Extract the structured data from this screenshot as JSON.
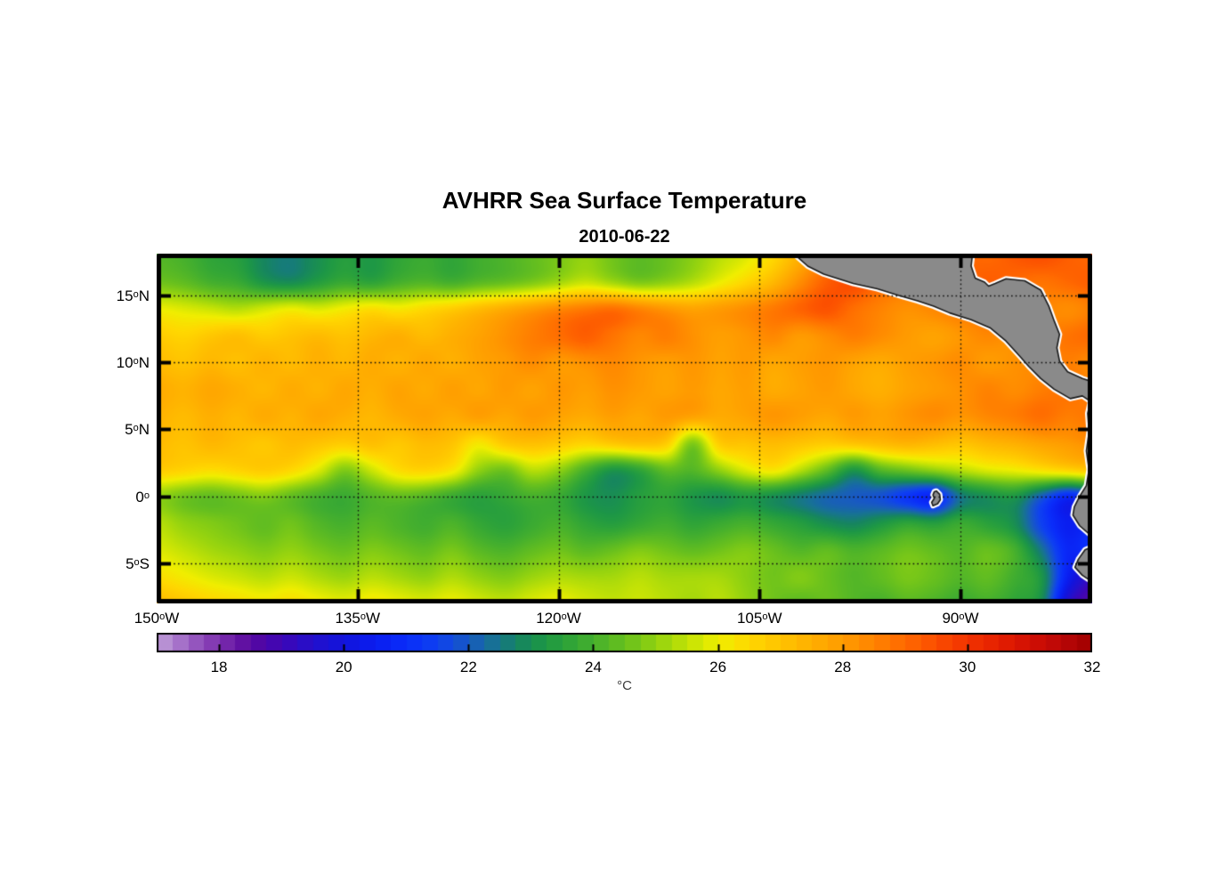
{
  "figure": {
    "title": "AVHRR Sea Surface Temperature",
    "subtitle": "2010-06-22"
  },
  "chart_data": {
    "type": "heatmap",
    "title": "AVHRR Sea Surface Temperature",
    "subtitle": "2010-06-22",
    "x_axis": {
      "tick_values_degW": [
        150,
        135,
        120,
        105,
        90
      ],
      "tick_labels": [
        "150°W",
        "135°W",
        "120°W",
        "105°W",
        "90°W"
      ],
      "gridline_values_degW": [
        135,
        120,
        105,
        90
      ]
    },
    "y_axis": {
      "tick_values_degN": [
        15,
        10,
        5,
        0,
        -5
      ],
      "tick_labels": [
        "15°N",
        "10°N",
        "5°N",
        "0°",
        "5°S"
      ],
      "gridline_values_degN": [
        15,
        10,
        5,
        0,
        -5
      ]
    },
    "extent": {
      "lon_west_degW": 150,
      "lon_east_degW": 80.2,
      "lat_north_degN": 18.1,
      "lat_south_degN": -8.0
    },
    "grid_on": true,
    "colorbar": {
      "min": 17,
      "max": 32,
      "step_band": 0.25,
      "tick_values": [
        18,
        20,
        22,
        24,
        26,
        28,
        30,
        32
      ],
      "tick_labels": [
        "18",
        "20",
        "22",
        "24",
        "26",
        "28",
        "30",
        "32"
      ],
      "unit_label": "°C",
      "stops": [
        [
          17.0,
          "#c0a0d8"
        ],
        [
          17.5,
          "#9c62c4"
        ],
        [
          18.0,
          "#7c2fae"
        ],
        [
          18.5,
          "#58089e"
        ],
        [
          19.0,
          "#3e06b6"
        ],
        [
          19.5,
          "#2410cc"
        ],
        [
          20.0,
          "#1214dd"
        ],
        [
          20.5,
          "#0a1ef0"
        ],
        [
          21.0,
          "#0a2dfa"
        ],
        [
          21.5,
          "#0f41f0"
        ],
        [
          22.0,
          "#185ac2"
        ],
        [
          22.4,
          "#177294"
        ],
        [
          22.8,
          "#168560"
        ],
        [
          23.2,
          "#1d9746"
        ],
        [
          23.6,
          "#2fa438"
        ],
        [
          24.0,
          "#46b02d"
        ],
        [
          24.5,
          "#68c01e"
        ],
        [
          25.0,
          "#92d210"
        ],
        [
          25.5,
          "#c2e206"
        ],
        [
          26.0,
          "#f0ee00"
        ],
        [
          26.5,
          "#ffd800"
        ],
        [
          27.0,
          "#ffc300"
        ],
        [
          27.5,
          "#ffaf00"
        ],
        [
          28.0,
          "#ff9b00"
        ],
        [
          28.5,
          "#ff8300"
        ],
        [
          29.0,
          "#ff6900"
        ],
        [
          29.5,
          "#fb4d00"
        ],
        [
          30.0,
          "#f23300"
        ],
        [
          30.5,
          "#e51f00"
        ],
        [
          31.0,
          "#d21004"
        ],
        [
          31.5,
          "#ba0707"
        ],
        [
          32.0,
          "#a00000"
        ]
      ]
    },
    "sst_grid": {
      "lons_degW_start": 150,
      "lons_degW_step": 2,
      "n_lon": 36,
      "lats_degN_start": 18,
      "lats_degN_step": -2,
      "n_lat": 14,
      "values_degC": [
        [
          24.2,
          24.0,
          23.6,
          23.4,
          22.8,
          22.6,
          23.0,
          23.4,
          23.2,
          23.6,
          23.8,
          23.6,
          23.9,
          24.1,
          24.4,
          24.7,
          25.0,
          24.6,
          24.3,
          24.5,
          24.9,
          25.4,
          25.8,
          26.5,
          27.5,
          28.5,
          29.0,
          29.3,
          29.5,
          29.4,
          29.2,
          29.0,
          29.3,
          29.5,
          29.2,
          29.0
        ],
        [
          24.6,
          24.4,
          24.0,
          23.8,
          23.2,
          23.0,
          23.4,
          23.8,
          23.6,
          24.0,
          24.2,
          24.0,
          24.3,
          24.5,
          24.8,
          25.2,
          25.6,
          25.2,
          24.8,
          25.0,
          25.4,
          26.0,
          26.6,
          27.3,
          28.3,
          29.2,
          29.5,
          29.0,
          28.8,
          28.6,
          28.9,
          29.2,
          29.0,
          28.8,
          29.0,
          29.2
        ],
        [
          26.0,
          25.8,
          25.6,
          25.4,
          25.7,
          26.0,
          25.8,
          26.1,
          26.4,
          26.2,
          26.5,
          26.8,
          27.2,
          27.6,
          28.0,
          28.4,
          28.7,
          28.9,
          28.5,
          28.1,
          27.8,
          28.0,
          28.3,
          28.7,
          29.1,
          29.4,
          28.9,
          28.5,
          28.2,
          28.4,
          28.7,
          28.9,
          28.7,
          28.5,
          28.3,
          28.6
        ],
        [
          26.8,
          26.6,
          26.9,
          27.1,
          26.8,
          27.0,
          27.2,
          27.0,
          27.3,
          27.5,
          27.2,
          27.5,
          27.8,
          28.2,
          28.6,
          28.9,
          29.2,
          28.8,
          28.4,
          28.6,
          28.2,
          27.9,
          28.1,
          28.4,
          28.0,
          28.3,
          28.6,
          28.3,
          28.0,
          27.8,
          28.1,
          28.4,
          28.2,
          28.5,
          28.8,
          29.0
        ],
        [
          27.2,
          27.0,
          27.3,
          27.1,
          27.4,
          27.2,
          27.5,
          27.3,
          27.6,
          27.4,
          27.7,
          27.5,
          27.8,
          28.0,
          28.3,
          28.0,
          28.2,
          28.4,
          28.1,
          27.9,
          28.1,
          27.8,
          28.0,
          27.7,
          27.9,
          28.1,
          27.8,
          27.6,
          27.9,
          28.1,
          28.3,
          28.0,
          28.2,
          28.4,
          28.6,
          28.3
        ],
        [
          27.6,
          27.4,
          27.7,
          27.5,
          27.3,
          27.6,
          27.4,
          27.7,
          27.5,
          27.8,
          27.6,
          27.9,
          27.7,
          28.0,
          27.8,
          28.1,
          27.9,
          28.2,
          28.0,
          27.8,
          28.0,
          27.7,
          27.9,
          27.6,
          27.8,
          28.0,
          27.7,
          27.5,
          27.8,
          28.0,
          28.2,
          28.5,
          28.3,
          28.6,
          28.8,
          28.5
        ],
        [
          27.4,
          27.2,
          27.5,
          27.3,
          27.6,
          27.4,
          27.7,
          27.5,
          27.3,
          27.6,
          27.8,
          27.6,
          27.9,
          27.7,
          28.0,
          27.8,
          27.6,
          27.9,
          27.7,
          28.0,
          27.8,
          27.6,
          27.8,
          28.1,
          27.9,
          27.7,
          28.0,
          27.8,
          28.1,
          28.3,
          28.1,
          28.4,
          28.6,
          28.9,
          28.6,
          28.8
        ],
        [
          27.2,
          27.0,
          27.3,
          27.1,
          26.9,
          27.2,
          27.0,
          26.8,
          27.1,
          26.9,
          27.2,
          27.0,
          26.2,
          26.9,
          27.1,
          26.9,
          26.6,
          26.9,
          27.1,
          26.8,
          24.8,
          26.8,
          27.0,
          27.2,
          27.0,
          26.8,
          27.0,
          27.2,
          27.4,
          27.2,
          27.0,
          27.3,
          27.5,
          27.8,
          28.0,
          28.3
        ],
        [
          26.8,
          26.6,
          26.4,
          26.6,
          26.8,
          26.5,
          25.8,
          24.8,
          25.6,
          26.4,
          26.6,
          26.2,
          25.0,
          24.6,
          25.4,
          25.0,
          24.0,
          23.2,
          23.6,
          24.4,
          24.2,
          25.0,
          25.8,
          26.2,
          25.4,
          24.4,
          23.2,
          24.2,
          24.6,
          25.0,
          25.4,
          25.8,
          26.0,
          26.3,
          26.6,
          26.9
        ],
        [
          25.0,
          24.6,
          24.4,
          24.6,
          24.8,
          24.4,
          24.0,
          23.8,
          24.2,
          24.4,
          24.2,
          23.8,
          23.5,
          23.7,
          24.0,
          23.8,
          23.2,
          23.0,
          23.4,
          23.6,
          23.2,
          23.0,
          23.3,
          23.0,
          22.6,
          22.2,
          22.0,
          21.8,
          21.2,
          20.8,
          22.5,
          23.0,
          23.2,
          22.0,
          20.8,
          21.5
        ],
        [
          25.4,
          25.0,
          24.8,
          24.6,
          24.4,
          24.6,
          24.2,
          24.0,
          24.3,
          24.1,
          23.9,
          24.1,
          23.7,
          23.5,
          23.8,
          24.0,
          23.6,
          23.4,
          23.7,
          23.9,
          23.6,
          23.8,
          24.0,
          23.7,
          23.4,
          23.0,
          22.8,
          23.2,
          23.6,
          23.4,
          23.8,
          23.5,
          23.0,
          21.5,
          20.5,
          21.0
        ],
        [
          25.8,
          25.5,
          25.2,
          25.0,
          24.8,
          25.0,
          24.7,
          24.5,
          24.8,
          24.6,
          24.4,
          24.7,
          24.3,
          24.1,
          24.4,
          24.6,
          24.3,
          24.5,
          24.8,
          24.6,
          24.4,
          24.6,
          24.8,
          24.5,
          24.2,
          24.4,
          24.1,
          24.3,
          24.6,
          24.4,
          24.2,
          24.5,
          24.0,
          22.5,
          20.8,
          21.2
        ],
        [
          26.4,
          26.1,
          25.8,
          25.6,
          25.4,
          25.6,
          25.3,
          25.1,
          25.4,
          25.2,
          25.0,
          25.3,
          25.0,
          24.8,
          25.1,
          25.3,
          25.2,
          25.2,
          25.4,
          25.2,
          25.2,
          25.2,
          24.9,
          24.6,
          24.8,
          24.5,
          24.2,
          24.4,
          24.7,
          24.5,
          24.2,
          24.4,
          23.9,
          23.2,
          20.5,
          19.2
        ],
        [
          27.2,
          26.9,
          26.6,
          26.4,
          26.2,
          26.4,
          26.1,
          25.9,
          26.2,
          26.0,
          25.8,
          26.0,
          25.7,
          25.5,
          25.8,
          26.0,
          25.7,
          25.5,
          25.6,
          25.4,
          25.2,
          25.4,
          25.0,
          24.6,
          24.3,
          24.5,
          24.2,
          24.0,
          24.3,
          24.1,
          23.8,
          24.0,
          23.6,
          23.0,
          19.5,
          18.5
        ]
      ]
    },
    "land": {
      "fill_color": "#8a8a8a",
      "coast_fringe_color": "#ffffff",
      "coast_line_color": "#1a1a1a",
      "polygons": {
        "central-america-colombia": [
          [
            102.3,
            18.0
          ],
          [
            101.4,
            17.2
          ],
          [
            100.2,
            16.6
          ],
          [
            98.0,
            15.9
          ],
          [
            96.2,
            15.5
          ],
          [
            94.6,
            15.0
          ],
          [
            93.2,
            14.6
          ],
          [
            92.0,
            14.2
          ],
          [
            90.8,
            13.7
          ],
          [
            89.2,
            13.2
          ],
          [
            87.8,
            12.6
          ],
          [
            86.6,
            11.6
          ],
          [
            85.6,
            10.5
          ],
          [
            84.9,
            9.7
          ],
          [
            84.0,
            8.8
          ],
          [
            83.0,
            8.0
          ],
          [
            81.8,
            7.3
          ],
          [
            80.9,
            7.5
          ],
          [
            80.3,
            7.1
          ],
          [
            80.5,
            6.2
          ],
          [
            80.4,
            4.8
          ],
          [
            80.6,
            3.4
          ],
          [
            80.4,
            2.0
          ],
          [
            80.6,
            0.8
          ],
          [
            81.1,
            0.0
          ],
          [
            81.5,
            -0.8
          ],
          [
            81.6,
            -1.4
          ],
          [
            81.1,
            -2.2
          ],
          [
            80.4,
            -2.8
          ],
          [
            80.05,
            -3.2
          ],
          [
            79.8,
            -3.2
          ],
          [
            79.8,
            8.45
          ],
          [
            80.9,
            8.8
          ],
          [
            82.0,
            9.3
          ],
          [
            82.6,
            10.1
          ],
          [
            82.8,
            11.1
          ],
          [
            82.6,
            12.1
          ],
          [
            83.0,
            13.1
          ],
          [
            83.4,
            14.2
          ],
          [
            84.0,
            15.4
          ],
          [
            85.2,
            16.1
          ],
          [
            86.6,
            16.25
          ],
          [
            87.4,
            15.9
          ],
          [
            87.9,
            15.7
          ],
          [
            88.2,
            16.0
          ],
          [
            88.9,
            16.3
          ],
          [
            89.2,
            17.2
          ],
          [
            89.1,
            18.1
          ]
        ],
        "peru": [
          [
            79.8,
            -3.6
          ],
          [
            80.7,
            -4.0
          ],
          [
            81.2,
            -4.7
          ],
          [
            81.45,
            -5.3
          ],
          [
            80.9,
            -5.9
          ],
          [
            80.3,
            -6.3
          ],
          [
            79.8,
            -6.6
          ]
        ],
        "galapagos": [
          [
            91.8,
            0.4
          ],
          [
            91.55,
            0.15
          ],
          [
            91.5,
            -0.25
          ],
          [
            91.7,
            -0.55
          ],
          [
            92.05,
            -0.7
          ],
          [
            92.15,
            -0.45
          ],
          [
            91.95,
            -0.15
          ],
          [
            92.05,
            0.1
          ],
          [
            91.95,
            0.35
          ]
        ]
      }
    }
  }
}
